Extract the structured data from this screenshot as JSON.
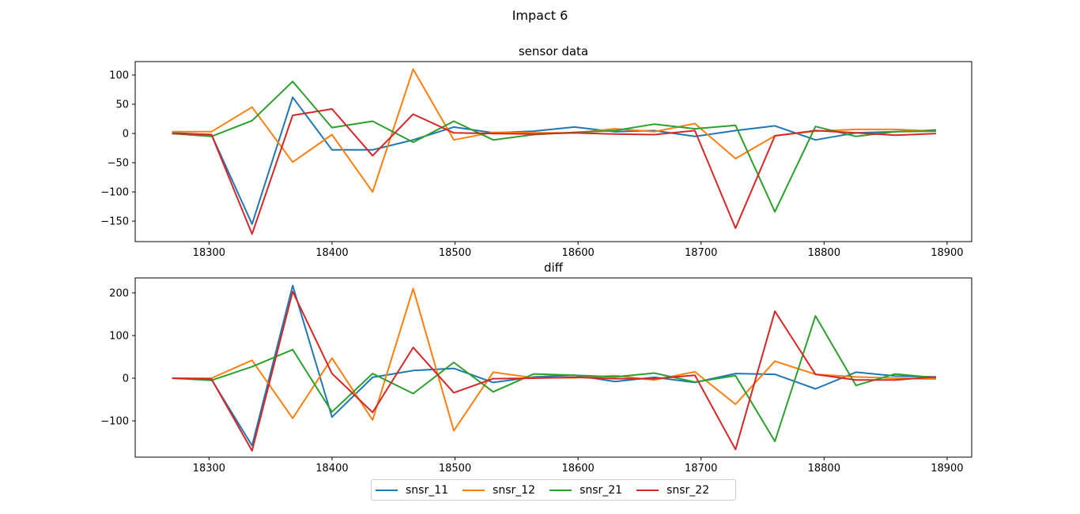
{
  "suptitle": "Impact 6",
  "colors": {
    "snsr_11": "#1f77b4",
    "snsr_12": "#ff7f0e",
    "snsr_21": "#2ca02c",
    "snsr_22": "#d62728"
  },
  "legend": [
    "snsr_11",
    "snsr_12",
    "snsr_21",
    "snsr_22"
  ],
  "chart_data": [
    {
      "type": "line",
      "title": "sensor data",
      "xlabel": "",
      "ylabel": "",
      "x": [
        18270,
        18302,
        18335,
        18368,
        18400,
        18433,
        18466,
        18499,
        18531,
        18564,
        18597,
        18630,
        18662,
        18695,
        18728,
        18760,
        18793,
        18826,
        18858,
        18891
      ],
      "xlim": [
        18240,
        18920
      ],
      "ylim": [
        -185,
        123
      ],
      "xticks": [
        18300,
        18400,
        18500,
        18600,
        18700,
        18800,
        18900
      ],
      "yticks": [
        100,
        50,
        0,
        -50,
        -100,
        -150
      ],
      "series": [
        {
          "name": "snsr_11",
          "values": [
            1,
            -2,
            -155,
            62,
            -28,
            -28,
            -11,
            11,
            1,
            4,
            11,
            3,
            5,
            -5,
            5,
            13,
            -11,
            1,
            3,
            6
          ]
        },
        {
          "name": "snsr_12",
          "values": [
            3,
            3,
            45,
            -49,
            -2,
            -100,
            110,
            -11,
            2,
            1,
            1,
            8,
            3,
            17,
            -43,
            -4,
            4,
            7,
            7,
            4
          ]
        },
        {
          "name": "snsr_21",
          "values": [
            0,
            -5,
            22,
            89,
            10,
            21,
            -15,
            21,
            -11,
            -2,
            2,
            5,
            16,
            8,
            14,
            -134,
            12,
            -5,
            3,
            4
          ]
        },
        {
          "name": "snsr_22",
          "values": [
            0,
            -2,
            -172,
            31,
            42,
            -38,
            33,
            1,
            0,
            -1,
            1,
            -1,
            -2,
            5,
            -162,
            -4,
            5,
            1,
            -3,
            0
          ]
        }
      ]
    },
    {
      "type": "line",
      "title": "diff",
      "xlabel": "",
      "ylabel": "",
      "x": [
        18270,
        18302,
        18335,
        18368,
        18400,
        18433,
        18466,
        18499,
        18531,
        18564,
        18597,
        18630,
        18662,
        18695,
        18728,
        18760,
        18793,
        18826,
        18858,
        18891
      ],
      "xlim": [
        18240,
        18920
      ],
      "ylim": [
        -185,
        235
      ],
      "xticks": [
        18300,
        18400,
        18500,
        18600,
        18700,
        18800,
        18900
      ],
      "yticks": [
        200,
        100,
        0,
        -100
      ],
      "series": [
        {
          "name": "snsr_11",
          "values": [
            0,
            -3,
            -158,
            217,
            -91,
            2,
            18,
            23,
            -10,
            3,
            7,
            -8,
            2,
            -10,
            11,
            9,
            -25,
            14,
            5,
            3
          ]
        },
        {
          "name": "snsr_12",
          "values": [
            0,
            0,
            42,
            -94,
            47,
            -98,
            210,
            -123,
            14,
            1,
            1,
            6,
            -4,
            15,
            -61,
            40,
            9,
            3,
            0,
            -2
          ]
        },
        {
          "name": "snsr_21",
          "values": [
            0,
            -5,
            27,
            67,
            -79,
            11,
            -36,
            37,
            -32,
            10,
            7,
            3,
            12,
            -9,
            6,
            -148,
            146,
            -17,
            10,
            1
          ]
        },
        {
          "name": "snsr_22",
          "values": [
            0,
            -2,
            -170,
            203,
            11,
            -80,
            72,
            -34,
            -1,
            0,
            2,
            -1,
            -1,
            7,
            -167,
            157,
            9,
            -4,
            -4,
            3
          ]
        }
      ]
    }
  ]
}
